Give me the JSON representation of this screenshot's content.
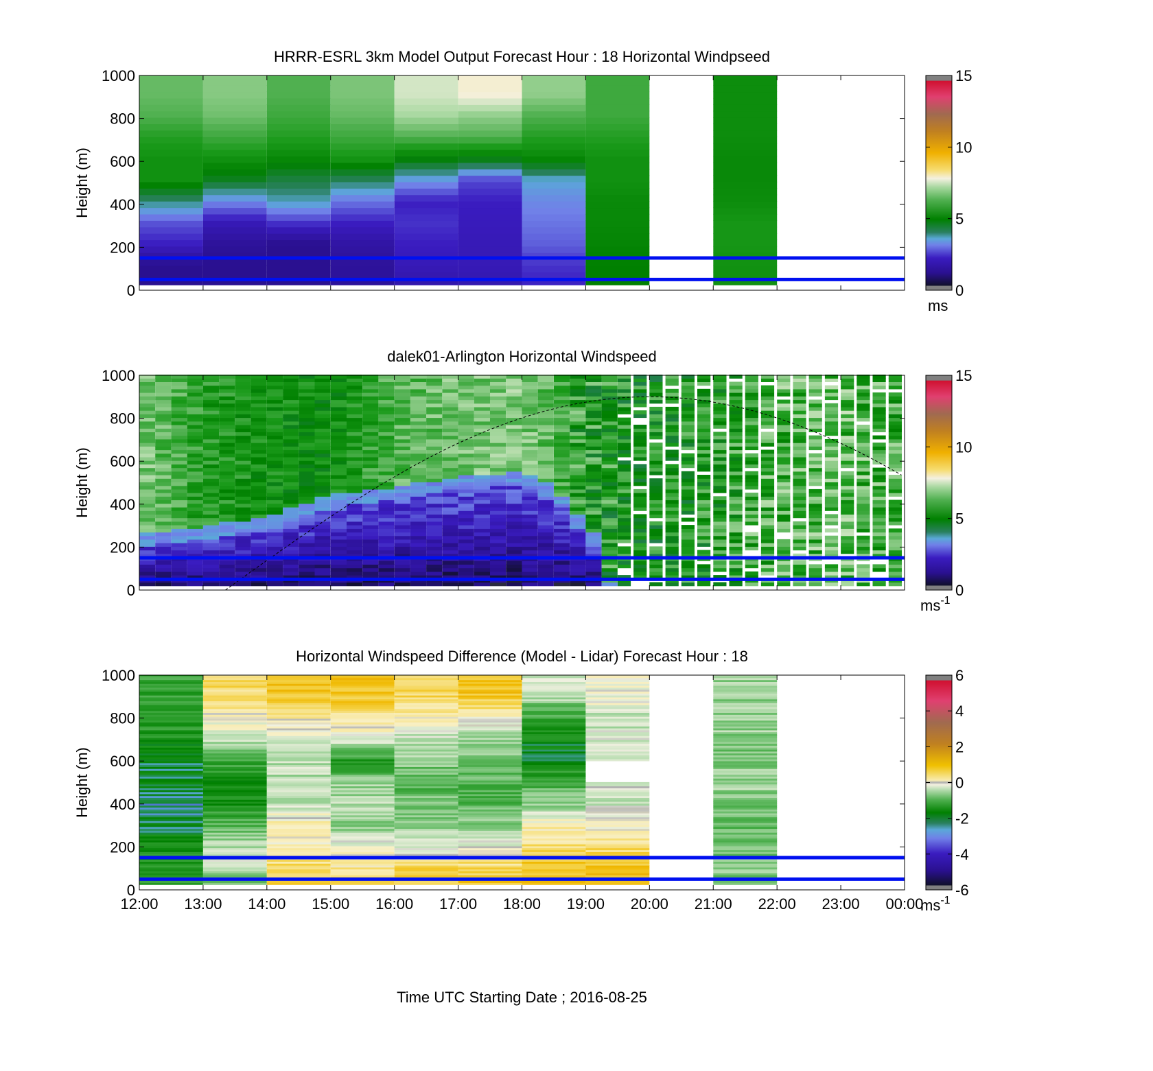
{
  "figure": {
    "xlabel": "Time UTC  Starting Date ; 2016-08-25",
    "xtick_labels": [
      "12:00",
      "13:00",
      "14:00",
      "15:00",
      "16:00",
      "17:00",
      "18:00",
      "19:00",
      "20:00",
      "21:00",
      "22:00",
      "23:00",
      "00:00"
    ]
  },
  "chart_data": [
    {
      "type": "heatmap",
      "title": "HRRR-ESRL 3km Model Output   Forecast Hour : 18 Horizontal Windpseed",
      "ylabel": "Height (m)",
      "xlim_hours": [
        12,
        24
      ],
      "ylim": [
        0,
        1000
      ],
      "ytick_labels": [
        "0",
        "200",
        "400",
        "600",
        "800",
        "1000"
      ],
      "reference_lines_m": [
        50,
        150
      ],
      "colorbar": {
        "range": [
          0,
          15
        ],
        "tick_labels": [
          "0",
          "5",
          "10",
          "15"
        ],
        "unit": "ms",
        "unit_sup": ""
      },
      "cell_height_m": 100,
      "columns": [
        {
          "hour": 12,
          "values": [
            1.0,
            1.0,
            2.0,
            2.5,
            3.8,
            5.2,
            5.2,
            5.5,
            6.0,
            6.2
          ]
        },
        {
          "hour": 13,
          "values": [
            1.0,
            1.0,
            1.2,
            1.8,
            3.0,
            4.5,
            5.2,
            5.8,
            6.3,
            6.5
          ]
        },
        {
          "hour": 14,
          "values": [
            1.0,
            1.0,
            1.0,
            2.2,
            3.5,
            4.2,
            5.0,
            5.5,
            5.8,
            6.0
          ]
        },
        {
          "hour": 15,
          "values": [
            1.2,
            1.2,
            1.4,
            2.0,
            2.8,
            4.0,
            5.3,
            5.8,
            6.2,
            6.4
          ]
        },
        {
          "hour": 16,
          "values": [
            1.5,
            1.8,
            2.0,
            2.2,
            2.0,
            3.2,
            4.8,
            6.0,
            6.8,
            7.2
          ]
        },
        {
          "hour": 17,
          "values": [
            1.6,
            1.8,
            1.8,
            1.9,
            2.0,
            2.4,
            4.7,
            6.0,
            6.6,
            7.6
          ]
        },
        {
          "hour": 18,
          "values": [
            2.0,
            2.2,
            2.6,
            2.8,
            3.0,
            3.4,
            5.0,
            5.5,
            6.0,
            6.6
          ]
        },
        {
          "hour": 19,
          "values": [
            4.8,
            4.8,
            4.9,
            5.0,
            5.0,
            5.2,
            5.2,
            5.5,
            5.8,
            5.8
          ]
        },
        {
          "hour": 20,
          "values": [
            null,
            null,
            null,
            null,
            null,
            null,
            null,
            null,
            null,
            null
          ]
        },
        {
          "hour": 21,
          "values": [
            5.2,
            5.2,
            5.3,
            5.3,
            5.1,
            5.0,
            5.0,
            5.1,
            5.1,
            5.1
          ]
        },
        {
          "hour": 22,
          "values": [
            null,
            null,
            null,
            null,
            null,
            null,
            null,
            null,
            null,
            null
          ]
        },
        {
          "hour": 23,
          "values": [
            null,
            null,
            null,
            null,
            null,
            null,
            null,
            null,
            null,
            null
          ]
        }
      ]
    },
    {
      "type": "heatmap",
      "title": "dalek01-Arlington  Horizontal Windspeed",
      "ylabel": "Height (m)",
      "xlim_hours": [
        12,
        24
      ],
      "ylim": [
        0,
        1000
      ],
      "ytick_labels": [
        "0",
        "200",
        "400",
        "600",
        "800",
        "1000"
      ],
      "reference_lines_m": [
        50,
        150
      ],
      "colorbar": {
        "range": [
          0,
          15
        ],
        "tick_labels": [
          "0",
          "5",
          "10",
          "15"
        ],
        "unit": "ms",
        "unit_sup": "-1"
      },
      "data_end_hour": 23.9,
      "cell_height_m": 50,
      "boundary_layer_top_m": [
        [
          12,
          250
        ],
        [
          13,
          290
        ],
        [
          14,
          330
        ],
        [
          15,
          440
        ],
        [
          16,
          470
        ],
        [
          17,
          520
        ],
        [
          18,
          540
        ],
        [
          18.5,
          480
        ],
        [
          19.2,
          230
        ],
        [
          19.4,
          0
        ]
      ],
      "upper_level_speed": [
        [
          12,
          6.5
        ],
        [
          13,
          5.5
        ],
        [
          14,
          5.2
        ],
        [
          15,
          5.0
        ],
        [
          16,
          6.0
        ],
        [
          17,
          6.3
        ],
        [
          18,
          6.5
        ],
        [
          19,
          5.4
        ],
        [
          20,
          5.2
        ],
        [
          21,
          5.5
        ],
        [
          22,
          6.0
        ],
        [
          23,
          6.2
        ],
        [
          24,
          5.8
        ]
      ],
      "solar_curve": {
        "peak_hour": 20.0,
        "peak_m": 900,
        "start_hour": 13.35,
        "line_style": "dashed"
      }
    },
    {
      "type": "heatmap",
      "title": "Horizontal Windspeed Difference (Model - Lidar) Forecast Hour : 18",
      "ylabel": "Height (m)",
      "xlim_hours": [
        12,
        24
      ],
      "ylim": [
        0,
        1000
      ],
      "ytick_labels": [
        "0",
        "200",
        "400",
        "600",
        "800",
        "1000"
      ],
      "reference_lines_m": [
        50,
        150
      ],
      "colorbar": {
        "range": [
          -6,
          6
        ],
        "tick_labels": [
          "-6",
          "-4",
          "-2",
          "0",
          "2",
          "4",
          "6"
        ],
        "unit": "ms",
        "unit_sup": "-1"
      },
      "cell_height_m": 100,
      "columns": [
        {
          "hour": 12,
          "values": [
            -2.0,
            -2.0,
            -2.2,
            -2.8,
            -3.2,
            -2.6,
            -2.8,
            -2.2,
            -1.8,
            -1.8
          ]
        },
        {
          "hour": 13,
          "values": [
            -1.8,
            -0.4,
            -0.8,
            -1.4,
            -2.2,
            -2.4,
            -1.6,
            -0.4,
            0.2,
            0.9
          ]
        },
        {
          "hour": 14,
          "values": [
            1.5,
            1.0,
            0.2,
            0.4,
            -0.6,
            -0.7,
            -0.6,
            -0.3,
            0.4,
            1.5
          ]
        },
        {
          "hour": 15,
          "values": [
            1.6,
            0.5,
            0.0,
            -1.0,
            -0.6,
            -1.0,
            -2.0,
            -0.3,
            0.7,
            1.5
          ]
        },
        {
          "hour": 16,
          "values": [
            1.5,
            1.0,
            -0.3,
            -1.0,
            -1.2,
            -1.4,
            -1.0,
            -0.6,
            0.5,
            1.0
          ]
        },
        {
          "hour": 17,
          "values": [
            1.7,
            1.0,
            -0.1,
            -1.0,
            -1.4,
            -1.4,
            -1.2,
            -1.0,
            0.2,
            1.5
          ]
        },
        {
          "hour": 18,
          "values": [
            1.8,
            1.5,
            0.8,
            0.3,
            -1.0,
            -1.6,
            -2.6,
            -2.4,
            -1.8,
            -0.6
          ]
        },
        {
          "hour": 19,
          "values": [
            1.9,
            1.5,
            0.9,
            0.1,
            -0.4,
            null,
            -0.3,
            -0.5,
            -0.5,
            0.0
          ]
        },
        {
          "hour": 20,
          "values": [
            null,
            null,
            null,
            null,
            null,
            null,
            null,
            null,
            null,
            null
          ]
        },
        {
          "hour": 21,
          "values": [
            -1.2,
            -1.0,
            -1.2,
            -1.4,
            -1.1,
            -0.8,
            -1.2,
            -1.0,
            -0.8,
            -0.9
          ]
        },
        {
          "hour": 22,
          "values": [
            null,
            null,
            null,
            null,
            null,
            null,
            null,
            null,
            null,
            null
          ]
        },
        {
          "hour": 23,
          "values": [
            null,
            null,
            null,
            null,
            null,
            null,
            null,
            null,
            null,
            null
          ]
        }
      ]
    }
  ]
}
